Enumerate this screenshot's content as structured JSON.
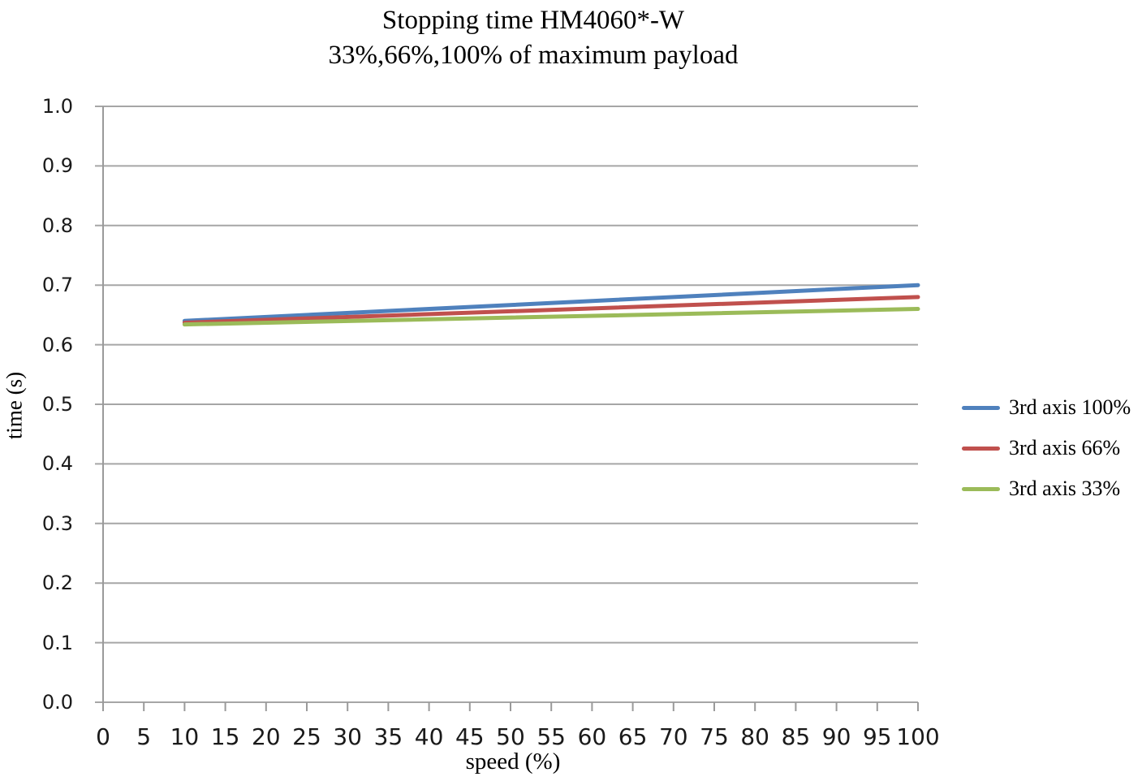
{
  "chart_data": {
    "type": "line",
    "title": "Stopping time HM4060*-W",
    "subtitle": "33%,66%,100% of maximum payload",
    "xlabel": "speed (%)",
    "ylabel": "time (s)",
    "xlim": [
      0,
      100
    ],
    "ylim": [
      0.0,
      1.0
    ],
    "x_ticks": [
      0,
      5,
      10,
      15,
      20,
      25,
      30,
      35,
      40,
      45,
      50,
      55,
      60,
      65,
      70,
      75,
      80,
      85,
      90,
      95,
      100
    ],
    "y_ticks": [
      "0.0",
      "0.1",
      "0.2",
      "0.3",
      "0.4",
      "0.5",
      "0.6",
      "0.7",
      "0.8",
      "0.9",
      "1.0"
    ],
    "grid": "horizontal gridlines every 0.1, outside tick marks on both axes",
    "legend_position": "right",
    "gridline_color": "#a6a6a6",
    "axis_color": "#9a9a9a",
    "series": [
      {
        "name": "3rd axis 100%",
        "color": "#4F81BD",
        "x": [
          10,
          100
        ],
        "y": [
          0.64,
          0.7
        ]
      },
      {
        "name": "3rd axis 66%",
        "color": "#C0504D",
        "x": [
          10,
          100
        ],
        "y": [
          0.637,
          0.68
        ]
      },
      {
        "name": "3rd axis 33%",
        "color": "#9BBB59",
        "x": [
          10,
          100
        ],
        "y": [
          0.634,
          0.66
        ]
      }
    ]
  }
}
